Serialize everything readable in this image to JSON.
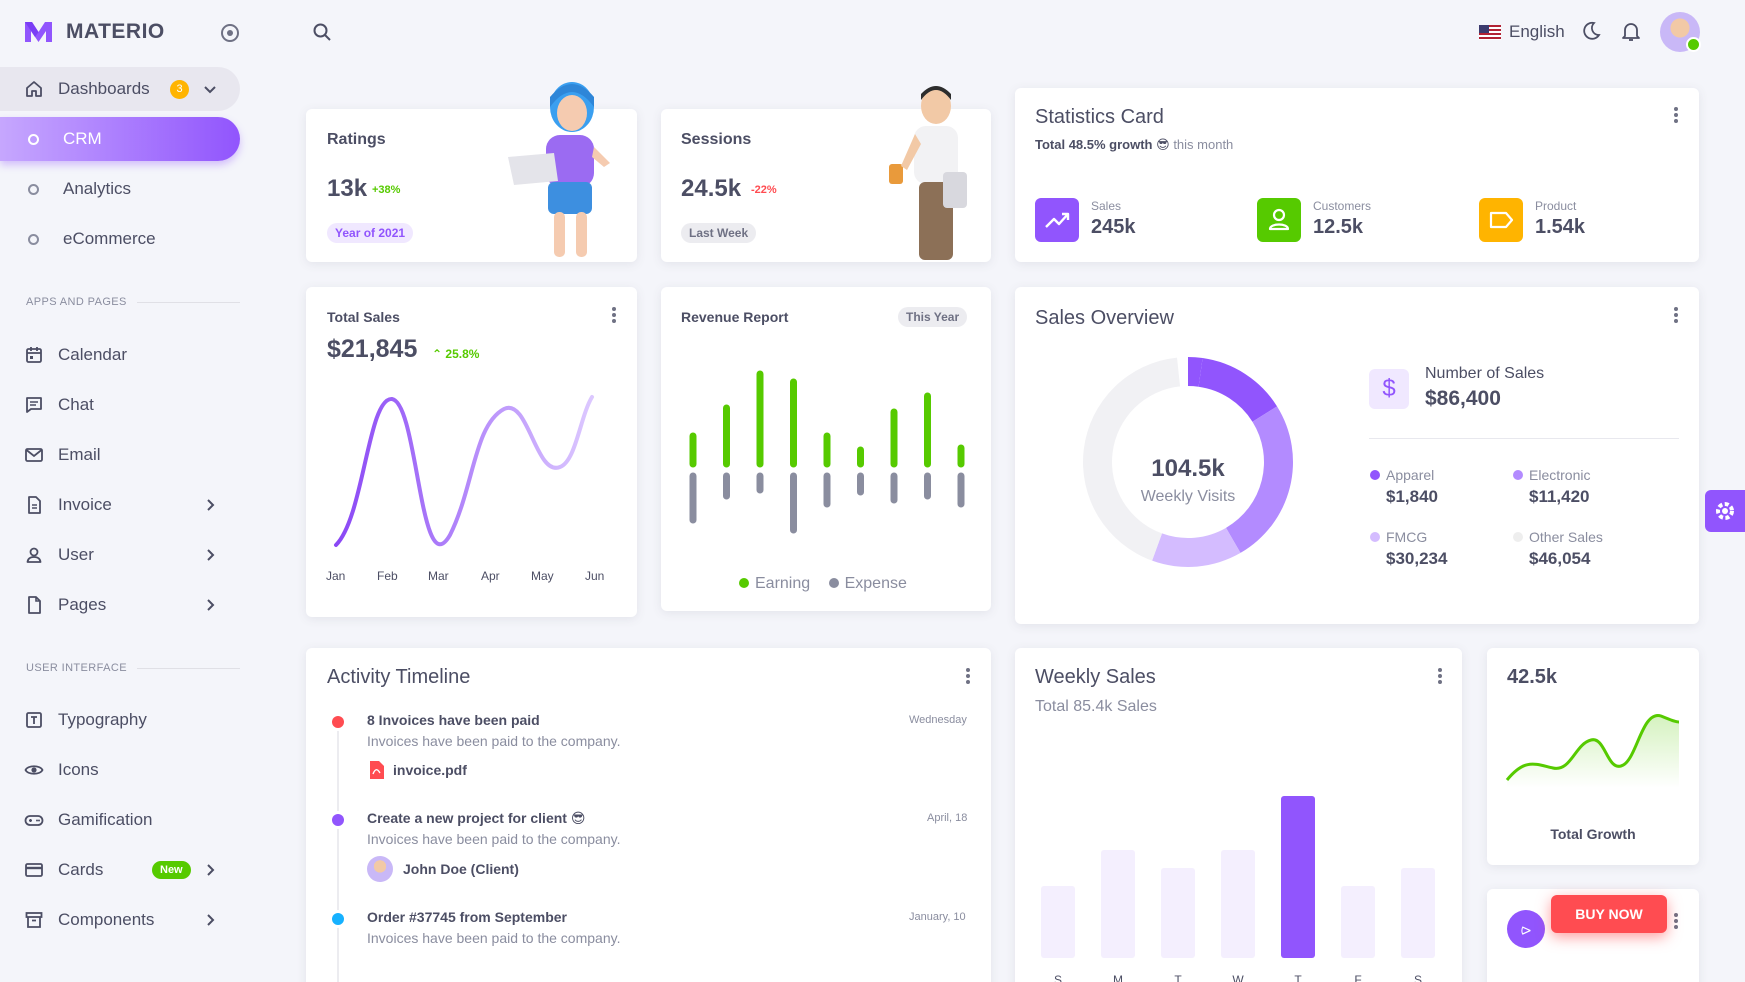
{
  "brand": {
    "name": "MATERIO"
  },
  "sidebar": {
    "dashboards": {
      "label": "Dashboards",
      "badge": "3"
    },
    "sub_items": [
      {
        "label": "CRM"
      },
      {
        "label": "Analytics"
      },
      {
        "label": "eCommerce"
      }
    ],
    "section_apps": "APPS AND PAGES",
    "apps": [
      {
        "label": "Calendar"
      },
      {
        "label": "Chat"
      },
      {
        "label": "Email"
      },
      {
        "label": "Invoice"
      },
      {
        "label": "User"
      },
      {
        "label": "Pages"
      }
    ],
    "section_ui": "USER INTERFACE",
    "ui": [
      {
        "label": "Typography"
      },
      {
        "label": "Icons"
      },
      {
        "label": "Gamification"
      },
      {
        "label": "Cards",
        "badge": "New"
      },
      {
        "label": "Components"
      }
    ]
  },
  "topbar": {
    "language": "English"
  },
  "ratings": {
    "title": "Ratings",
    "value": "13k",
    "change": "+38%",
    "chip": "Year of 2021"
  },
  "sessions": {
    "title": "Sessions",
    "value": "24.5k",
    "change": "-22%",
    "chip": "Last Week"
  },
  "statistics": {
    "title": "Statistics Card",
    "growth": "Total 48.5% growth",
    "emoji": "😎",
    "period": "this month",
    "items": [
      {
        "label": "Sales",
        "value": "245k",
        "color": "#9155fd"
      },
      {
        "label": "Customers",
        "value": "12.5k",
        "color": "#56ca00"
      },
      {
        "label": "Product",
        "value": "1.54k",
        "color": "#ffb400"
      }
    ]
  },
  "total_sales": {
    "title": "Total Sales",
    "value": "$21,845",
    "change": "25.8%",
    "months": [
      "Jan",
      "Feb",
      "Mar",
      "Apr",
      "May",
      "Jun"
    ]
  },
  "revenue": {
    "title": "Revenue Report",
    "chip": "This Year",
    "legend_earning": "Earning",
    "legend_expense": "Expense",
    "earning": [
      28,
      56,
      90,
      82,
      28,
      14,
      52,
      68,
      16
    ],
    "expense": [
      44,
      20,
      14,
      54,
      28,
      16,
      24,
      20,
      28
    ]
  },
  "sales_overview": {
    "title": "Sales Overview",
    "center_value": "104.5k",
    "center_label": "Weekly Visits",
    "number_label": "Number of Sales",
    "number_value": "$86,400",
    "items": [
      {
        "label": "Apparel",
        "value": "$1,840",
        "color": "#9155fd"
      },
      {
        "label": "Electronic",
        "value": "$11,420",
        "color": "#b38bff"
      },
      {
        "label": "FMCG",
        "value": "$30,234",
        "color": "#d4bcff"
      },
      {
        "label": "Other Sales",
        "value": "$46,054",
        "color": "#f0f0f0"
      }
    ]
  },
  "activity": {
    "title": "Activity Timeline",
    "items": [
      {
        "title": "8 Invoices have been paid",
        "desc": "Invoices have been paid to the company.",
        "date": "Wednesday",
        "attach": "invoice.pdf",
        "color": "#ff4c51"
      },
      {
        "title": "Create a new project for client 😎",
        "desc": "Invoices have been paid to the company.",
        "date": "April, 18",
        "attach": "John Doe (Client)",
        "color": "#9155fd"
      },
      {
        "title": "Order #37745 from September",
        "desc": "Invoices have been paid to the company.",
        "date": "January, 10",
        "color": "#16b1ff"
      }
    ]
  },
  "weekly_sales": {
    "title": "Weekly Sales",
    "subtitle": "Total 85.4k Sales",
    "days": [
      "S",
      "M",
      "T",
      "W",
      "T",
      "F",
      "S"
    ],
    "values": [
      40,
      60,
      50,
      60,
      90,
      40,
      50
    ]
  },
  "total_growth": {
    "value": "42.5k",
    "label": "Total Growth"
  },
  "buy_now": {
    "label": "BUY NOW"
  }
}
